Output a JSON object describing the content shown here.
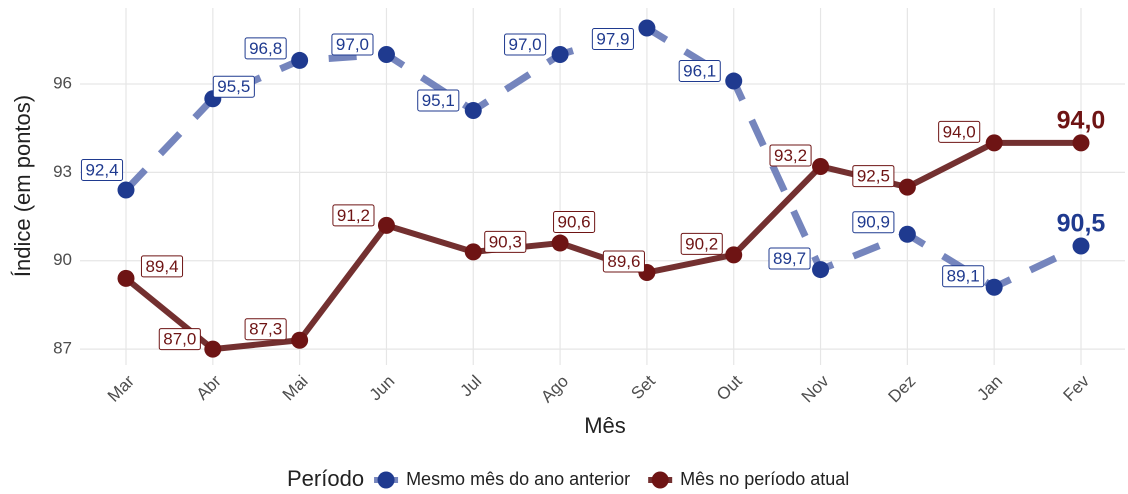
{
  "chart_data": {
    "type": "line",
    "x_label": "Mês",
    "y_label": "Índice (em pontos)",
    "categories": [
      "Mar",
      "Abr",
      "Mai",
      "Jun",
      "Jul",
      "Ago",
      "Set",
      "Out",
      "Nov",
      "Dez",
      "Jan",
      "Fev"
    ],
    "series": [
      {
        "name": "Mesmo mês do ano anterior",
        "color": "#1f3a8f",
        "line_color": "#7585bd",
        "dash": true,
        "values": [
          92.4,
          95.5,
          96.8,
          97.0,
          95.1,
          97.0,
          97.9,
          96.1,
          89.7,
          90.9,
          89.1,
          90.5
        ],
        "value_labels": [
          "92,4",
          "95,5",
          "96,8",
          "97,0",
          "95,1",
          "97,0",
          "97,9",
          "96,1",
          "89,7",
          "90,9",
          "89,1",
          "90,5"
        ]
      },
      {
        "name": "Mês no período atual",
        "color": "#6e1414",
        "line_color": "#733030",
        "dash": false,
        "values": [
          89.4,
          87.0,
          87.3,
          91.2,
          90.3,
          90.6,
          89.6,
          90.2,
          93.2,
          92.5,
          94.0,
          94.0
        ],
        "value_labels": [
          "89,4",
          "87,0",
          "87,3",
          "91,2",
          "90,3",
          "90,6",
          "89,6",
          "90,2",
          "93,2",
          "92,5",
          "94,0",
          "94,0"
        ]
      }
    ],
    "ylim": [
      86.46,
      98.58
    ],
    "yticks": [
      87,
      90,
      93,
      96
    ],
    "grid": true,
    "legend_title": "Período",
    "legend_position": "bottom"
  }
}
